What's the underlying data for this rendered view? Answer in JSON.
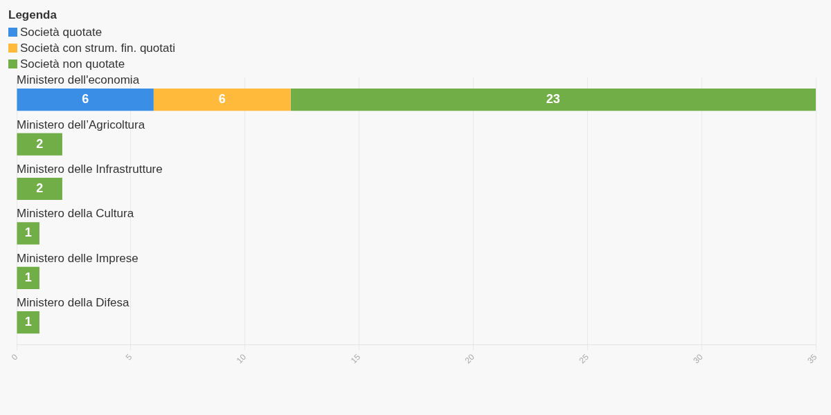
{
  "chart_data": {
    "type": "bar",
    "orientation": "horizontal",
    "stacked": true,
    "legend_title": "Legenda",
    "legend": "top left",
    "categories": [
      "Ministero dell'economia",
      "Ministero dell’Agricoltura",
      "Ministero delle Infrastrutture",
      "Ministero della Cultura",
      "Ministero delle Imprese",
      "Ministero della Difesa"
    ],
    "series": [
      {
        "name": "Società quotate",
        "color": "#3a8ee6",
        "values": [
          6,
          null,
          null,
          null,
          null,
          null
        ]
      },
      {
        "name": "Società con strum. fin. quotati",
        "color": "#ffb93b",
        "values": [
          6,
          null,
          null,
          null,
          null,
          null
        ]
      },
      {
        "name": "Società non quotate",
        "color": "#72ae48",
        "values": [
          23,
          2,
          2,
          1,
          1,
          1
        ]
      }
    ],
    "xlim": [
      0,
      35
    ],
    "xticks": [
      0,
      5,
      10,
      15,
      20,
      25,
      30,
      35
    ],
    "grid": "x",
    "data_labels": true
  }
}
